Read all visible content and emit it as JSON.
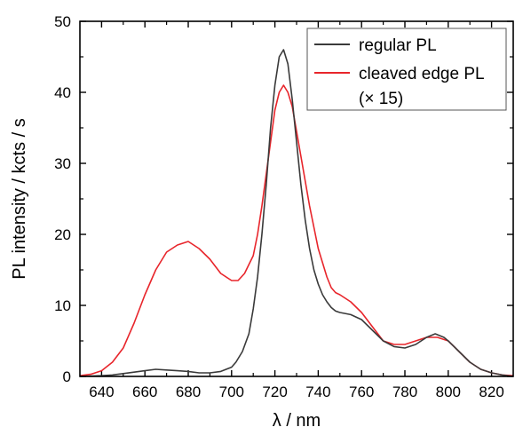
{
  "chart_data": {
    "type": "line",
    "xlabel": "λ / nm",
    "ylabel": "PL intensity / kcts / s",
    "xlim": [
      630,
      830
    ],
    "ylim": [
      0,
      50
    ],
    "x_ticks": [
      640,
      660,
      680,
      700,
      720,
      740,
      760,
      780,
      800,
      820
    ],
    "y_ticks": [
      0,
      10,
      20,
      30,
      40,
      50
    ],
    "grid": false,
    "legend_position": "top-right",
    "series": [
      {
        "name": "regular PL",
        "color": "#3a3a3a",
        "x": [
          630,
          640,
          645,
          650,
          655,
          660,
          665,
          670,
          675,
          680,
          685,
          690,
          695,
          700,
          702,
          705,
          708,
          710,
          712,
          714,
          716,
          718,
          720,
          722,
          724,
          726,
          728,
          730,
          732,
          734,
          736,
          738,
          740,
          742,
          744,
          746,
          748,
          750,
          755,
          760,
          765,
          770,
          775,
          780,
          785,
          790,
          794,
          798,
          800,
          805,
          810,
          815,
          820,
          825,
          830
        ],
        "values": [
          0.0,
          0.1,
          0.2,
          0.4,
          0.6,
          0.8,
          1.0,
          0.9,
          0.8,
          0.7,
          0.5,
          0.5,
          0.7,
          1.3,
          2.0,
          3.5,
          6.0,
          9.5,
          14.0,
          20.0,
          27.0,
          35.0,
          41.0,
          45.0,
          46.0,
          44.0,
          39.0,
          33.0,
          27.0,
          22.0,
          18.0,
          15.0,
          13.0,
          11.5,
          10.5,
          9.7,
          9.2,
          9.0,
          8.7,
          8.0,
          6.5,
          5.0,
          4.2,
          4.0,
          4.5,
          5.5,
          6.0,
          5.5,
          5.0,
          3.5,
          2.0,
          1.0,
          0.5,
          0.2,
          0.0
        ]
      },
      {
        "name": "cleaved edge PL",
        "color": "#e8252b",
        "x": [
          630,
          635,
          640,
          645,
          650,
          655,
          660,
          665,
          670,
          675,
          680,
          685,
          690,
          695,
          700,
          703,
          706,
          710,
          712,
          714,
          716,
          718,
          720,
          722,
          724,
          726,
          728,
          730,
          732,
          734,
          736,
          738,
          740,
          742,
          744,
          746,
          748,
          750,
          755,
          760,
          765,
          770,
          775,
          780,
          785,
          790,
          795,
          800,
          805,
          810,
          815,
          820,
          825,
          830
        ],
        "values": [
          0.1,
          0.3,
          0.8,
          2.0,
          4.0,
          7.5,
          11.5,
          15.0,
          17.5,
          18.5,
          19.0,
          18.0,
          16.5,
          14.5,
          13.5,
          13.5,
          14.5,
          17.0,
          20.0,
          24.0,
          28.5,
          33.0,
          37.5,
          40.0,
          41.0,
          40.0,
          38.0,
          34.5,
          31.0,
          27.5,
          24.0,
          21.0,
          18.0,
          16.0,
          14.0,
          12.5,
          11.8,
          11.5,
          10.5,
          9.0,
          7.0,
          5.0,
          4.5,
          4.5,
          5.0,
          5.5,
          5.5,
          5.0,
          3.5,
          2.0,
          1.0,
          0.5,
          0.2,
          0.1
        ]
      }
    ],
    "legend_note": "(× 15)"
  }
}
